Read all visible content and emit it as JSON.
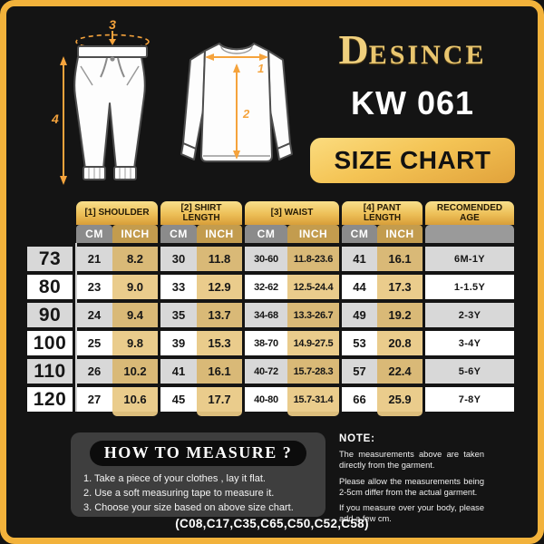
{
  "brand": {
    "name": "DESINCE",
    "monogram": "D",
    "name_rest": "ESINCE"
  },
  "product_code": "KW 061",
  "banner_label": "SIZE CHART",
  "illustration": {
    "shirt_label_shoulder": "1",
    "shirt_label_length": "2",
    "pants_label_waist": "3",
    "pants_label_length": "4"
  },
  "table": {
    "groups": [
      {
        "label": "[1] SHOULDER",
        "cm": "CM",
        "inch": "INCH"
      },
      {
        "label": "[2] SHIRT LENGTH",
        "cm": "CM",
        "inch": "INCH"
      },
      {
        "label": "[3] WAIST",
        "cm": "CM",
        "inch": "INCH"
      },
      {
        "label": "[4] PANT LENGTH",
        "cm": "CM",
        "inch": "INCH"
      },
      {
        "label": "RECOMENDED AGE"
      }
    ],
    "rows": [
      {
        "size": "73",
        "cells": [
          "21",
          "8.2",
          "30",
          "11.8",
          "30-60",
          "11.8-23.6",
          "41",
          "16.1"
        ],
        "age": "6M-1Y"
      },
      {
        "size": "80",
        "cells": [
          "23",
          "9.0",
          "33",
          "12.9",
          "32-62",
          "12.5-24.4",
          "44",
          "17.3"
        ],
        "age": "1-1.5Y"
      },
      {
        "size": "90",
        "cells": [
          "24",
          "9.4",
          "35",
          "13.7",
          "34-68",
          "13.3-26.7",
          "49",
          "19.2"
        ],
        "age": "2-3Y"
      },
      {
        "size": "100",
        "cells": [
          "25",
          "9.8",
          "39",
          "15.3",
          "38-70",
          "14.9-27.5",
          "53",
          "20.8"
        ],
        "age": "3-4Y"
      },
      {
        "size": "110",
        "cells": [
          "26",
          "10.2",
          "41",
          "16.1",
          "40-72",
          "15.7-28.3",
          "57",
          "22.4"
        ],
        "age": "5-6Y"
      },
      {
        "size": "120",
        "cells": [
          "27",
          "10.6",
          "45",
          "17.7",
          "40-80",
          "15.7-31.4",
          "66",
          "25.9"
        ],
        "age": "7-8Y"
      }
    ]
  },
  "how_to_measure": {
    "title": "HOW TO MEASURE ?",
    "steps": [
      "1. Take a piece of your clothes , lay it flat.",
      "2. Use a soft measuring tape to measure it.",
      "3. Choose your size based on above size chart."
    ]
  },
  "note": {
    "title": "NOTE:",
    "paragraphs": [
      "The measurements above are taken directly from the garment.",
      "Please allow the measurements being 2-5cm differ from the actual garment.",
      "If you measure over your body, please add a few cm."
    ]
  },
  "footer_codes": "(C08,C17,C35,C65,C50,C52,C58)",
  "colors": {
    "frame_gold": "#F2B23B",
    "tab_gold_top": "#F8DF8C",
    "tab_gold_bottom": "#D89E39",
    "header_gray": "#8B8B8B",
    "inch_header_gold": "#C39C4E",
    "row_gray": "#D8D8D8",
    "row_white": "#FFFFFF",
    "inch_tint_light": "#EACC8C",
    "inch_tint_dark": "#D9B977",
    "arrow_orange": "#F5A33C",
    "background": "#141414"
  }
}
